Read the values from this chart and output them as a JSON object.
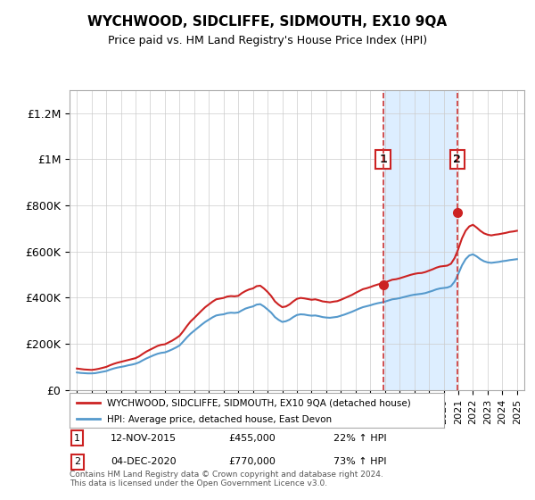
{
  "title": "WYCHWOOD, SIDCLIFFE, SIDMOUTH, EX10 9QA",
  "subtitle": "Price paid vs. HM Land Registry's House Price Index (HPI)",
  "ylabel_ticks": [
    "£0",
    "£200K",
    "£400K",
    "£600K",
    "£800K",
    "£1M",
    "£1.2M"
  ],
  "ytick_vals": [
    0,
    200000,
    400000,
    600000,
    800000,
    1000000,
    1200000
  ],
  "ylim": [
    0,
    1300000
  ],
  "xlim_start": 1994.5,
  "xlim_end": 2025.5,
  "xticks": [
    1995,
    1996,
    1997,
    1998,
    1999,
    2000,
    2001,
    2002,
    2003,
    2004,
    2005,
    2006,
    2007,
    2008,
    2009,
    2010,
    2011,
    2012,
    2013,
    2014,
    2015,
    2016,
    2017,
    2018,
    2019,
    2020,
    2021,
    2022,
    2023,
    2024,
    2025
  ],
  "hpi_color": "#5599cc",
  "price_color": "#cc2222",
  "marker_color_1": "#cc2222",
  "marker_color_2": "#cc2222",
  "sale1_x": 2015.87,
  "sale1_y": 455000,
  "sale1_label": "1",
  "sale1_date": "12-NOV-2015",
  "sale1_price": "£455,000",
  "sale1_hpi": "22% ↑ HPI",
  "sale2_x": 2020.92,
  "sale2_y": 770000,
  "sale2_label": "2",
  "sale2_date": "04-DEC-2020",
  "sale2_price": "£770,000",
  "sale2_hpi": "73% ↑ HPI",
  "legend_line1": "WYCHWOOD, SIDCLIFFE, SIDMOUTH, EX10 9QA (detached house)",
  "legend_line2": "HPI: Average price, detached house, East Devon",
  "footnote": "Contains HM Land Registry data © Crown copyright and database right 2024.\nThis data is licensed under the Open Government Licence v3.0.",
  "bg_highlight_color": "#ddeeff",
  "vline_color": "#cc3333",
  "box_edge_color": "#cc2222",
  "hpi_data_x": [
    1995.0,
    1995.25,
    1995.5,
    1995.75,
    1996.0,
    1996.25,
    1996.5,
    1996.75,
    1997.0,
    1997.25,
    1997.5,
    1997.75,
    1998.0,
    1998.25,
    1998.5,
    1998.75,
    1999.0,
    1999.25,
    1999.5,
    1999.75,
    2000.0,
    2000.25,
    2000.5,
    2000.75,
    2001.0,
    2001.25,
    2001.5,
    2001.75,
    2002.0,
    2002.25,
    2002.5,
    2002.75,
    2003.0,
    2003.25,
    2003.5,
    2003.75,
    2004.0,
    2004.25,
    2004.5,
    2004.75,
    2005.0,
    2005.25,
    2005.5,
    2005.75,
    2006.0,
    2006.25,
    2006.5,
    2006.75,
    2007.0,
    2007.25,
    2007.5,
    2007.75,
    2008.0,
    2008.25,
    2008.5,
    2008.75,
    2009.0,
    2009.25,
    2009.5,
    2009.75,
    2010.0,
    2010.25,
    2010.5,
    2010.75,
    2011.0,
    2011.25,
    2011.5,
    2011.75,
    2012.0,
    2012.25,
    2012.5,
    2012.75,
    2013.0,
    2013.25,
    2013.5,
    2013.75,
    2014.0,
    2014.25,
    2014.5,
    2014.75,
    2015.0,
    2015.25,
    2015.5,
    2015.75,
    2016.0,
    2016.25,
    2016.5,
    2016.75,
    2017.0,
    2017.25,
    2017.5,
    2017.75,
    2018.0,
    2018.25,
    2018.5,
    2018.75,
    2019.0,
    2019.25,
    2019.5,
    2019.75,
    2020.0,
    2020.25,
    2020.5,
    2020.75,
    2021.0,
    2021.25,
    2021.5,
    2021.75,
    2022.0,
    2022.25,
    2022.5,
    2022.75,
    2023.0,
    2023.25,
    2023.5,
    2023.75,
    2024.0,
    2024.25,
    2024.5,
    2024.75,
    2025.0
  ],
  "hpi_data_y": [
    76000,
    74000,
    73000,
    72000,
    72000,
    73000,
    76000,
    79000,
    82000,
    88000,
    93000,
    97000,
    100000,
    103000,
    107000,
    110000,
    114000,
    120000,
    129000,
    137000,
    144000,
    151000,
    157000,
    161000,
    163000,
    169000,
    176000,
    184000,
    193000,
    210000,
    228000,
    244000,
    257000,
    270000,
    283000,
    295000,
    305000,
    315000,
    323000,
    326000,
    328000,
    333000,
    335000,
    334000,
    336000,
    345000,
    353000,
    358000,
    362000,
    370000,
    372000,
    362000,
    349000,
    335000,
    316000,
    304000,
    295000,
    298000,
    305000,
    316000,
    325000,
    328000,
    327000,
    324000,
    322000,
    323000,
    320000,
    316000,
    314000,
    313000,
    315000,
    317000,
    322000,
    327000,
    333000,
    339000,
    346000,
    353000,
    359000,
    363000,
    367000,
    372000,
    376000,
    379000,
    383000,
    388000,
    393000,
    395000,
    398000,
    402000,
    406000,
    410000,
    413000,
    415000,
    417000,
    420000,
    425000,
    430000,
    436000,
    440000,
    442000,
    444000,
    450000,
    470000,
    503000,
    540000,
    567000,
    583000,
    588000,
    579000,
    567000,
    558000,
    553000,
    551000,
    553000,
    555000,
    558000,
    560000,
    563000,
    565000,
    567000
  ],
  "price_data_x": [
    1995.0,
    1995.25,
    1995.5,
    1995.75,
    1996.0,
    1996.25,
    1996.5,
    1996.75,
    1997.0,
    1997.25,
    1997.5,
    1997.75,
    1998.0,
    1998.25,
    1998.5,
    1998.75,
    1999.0,
    1999.25,
    1999.5,
    1999.75,
    2000.0,
    2000.25,
    2000.5,
    2000.75,
    2001.0,
    2001.25,
    2001.5,
    2001.75,
    2002.0,
    2002.25,
    2002.5,
    2002.75,
    2003.0,
    2003.25,
    2003.5,
    2003.75,
    2004.0,
    2004.25,
    2004.5,
    2004.75,
    2005.0,
    2005.25,
    2005.5,
    2005.75,
    2006.0,
    2006.25,
    2006.5,
    2006.75,
    2007.0,
    2007.25,
    2007.5,
    2007.75,
    2008.0,
    2008.25,
    2008.5,
    2008.75,
    2009.0,
    2009.25,
    2009.5,
    2009.75,
    2010.0,
    2010.25,
    2010.5,
    2010.75,
    2011.0,
    2011.25,
    2011.5,
    2011.75,
    2012.0,
    2012.25,
    2012.5,
    2012.75,
    2013.0,
    2013.25,
    2013.5,
    2013.75,
    2014.0,
    2014.25,
    2014.5,
    2014.75,
    2015.0,
    2015.25,
    2015.5,
    2015.75,
    2016.0,
    2016.25,
    2016.5,
    2016.75,
    2017.0,
    2017.25,
    2017.5,
    2017.75,
    2018.0,
    2018.25,
    2018.5,
    2018.75,
    2019.0,
    2019.25,
    2019.5,
    2019.75,
    2020.0,
    2020.25,
    2020.5,
    2020.75,
    2021.0,
    2021.25,
    2021.5,
    2021.75,
    2022.0,
    2022.25,
    2022.5,
    2022.75,
    2023.0,
    2023.25,
    2023.5,
    2023.75,
    2024.0,
    2024.25,
    2024.5,
    2024.75,
    2025.0
  ],
  "price_data_y": [
    93000,
    91000,
    89000,
    88000,
    87000,
    89000,
    92000,
    96000,
    100000,
    107000,
    113000,
    118000,
    122000,
    126000,
    130000,
    134000,
    138000,
    146000,
    157000,
    167000,
    175000,
    183000,
    191000,
    196000,
    198000,
    206000,
    214000,
    224000,
    235000,
    255000,
    277000,
    297000,
    312000,
    328000,
    344000,
    359000,
    371000,
    383000,
    393000,
    396000,
    399000,
    405000,
    407000,
    406000,
    408000,
    420000,
    429000,
    436000,
    440000,
    450000,
    452000,
    440000,
    425000,
    407000,
    384000,
    370000,
    359000,
    362000,
    371000,
    384000,
    395000,
    399000,
    397000,
    394000,
    391000,
    393000,
    389000,
    384000,
    382000,
    380000,
    383000,
    385000,
    391000,
    398000,
    405000,
    412000,
    421000,
    429000,
    437000,
    441000,
    446000,
    452000,
    457000,
    461000,
    466000,
    472000,
    478000,
    480000,
    484000,
    489000,
    494000,
    499000,
    503000,
    506000,
    507000,
    511000,
    517000,
    523000,
    530000,
    535000,
    537000,
    539000,
    547000,
    572000,
    611000,
    657000,
    690000,
    709000,
    716000,
    704000,
    690000,
    679000,
    673000,
    670000,
    673000,
    675000,
    678000,
    681000,
    685000,
    687000,
    690000
  ]
}
